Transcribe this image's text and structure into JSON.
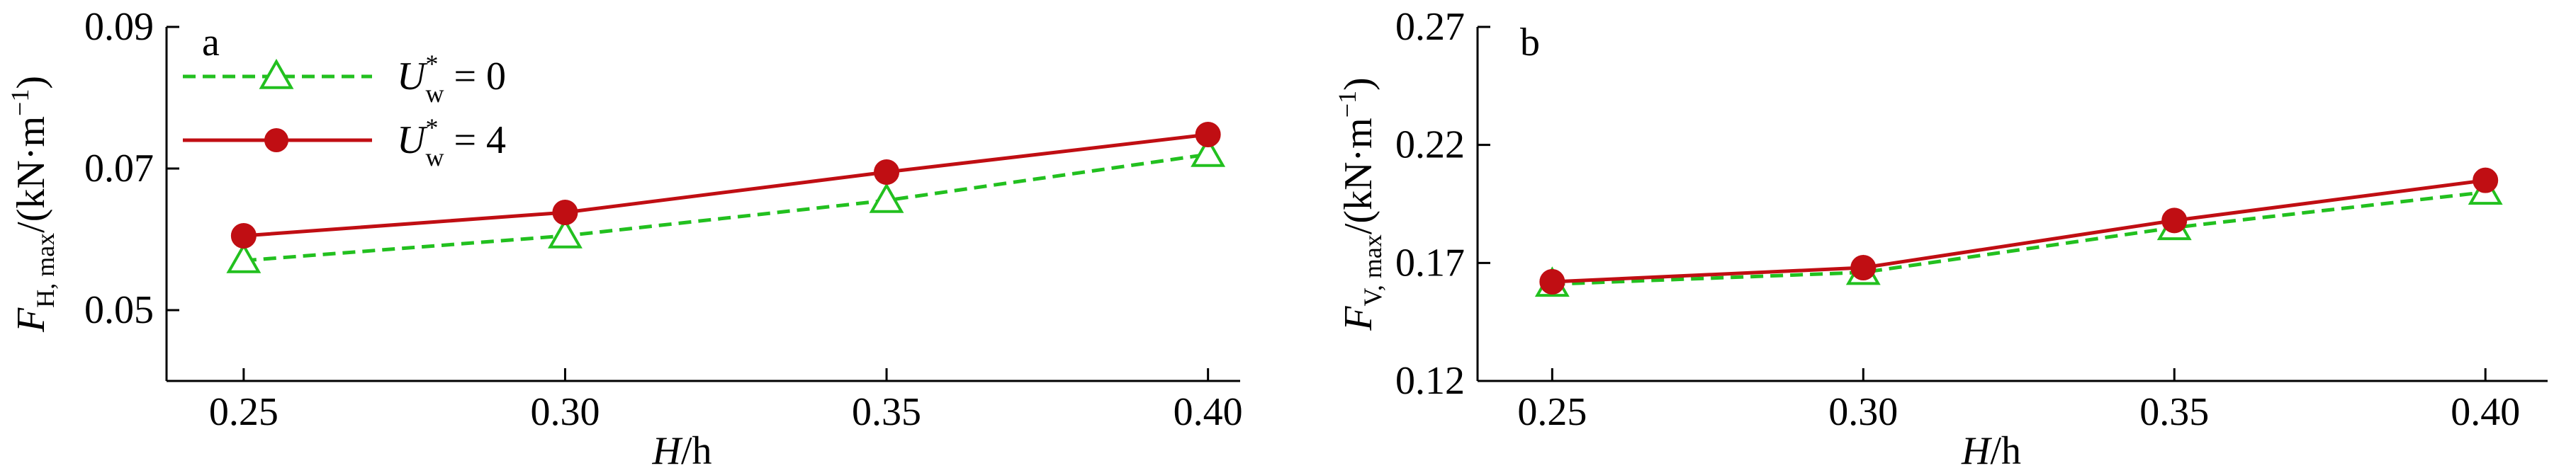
{
  "chart_data": [
    {
      "type": "line",
      "panel_label": "a",
      "x": [
        0.25,
        0.3,
        0.35,
        0.4
      ],
      "xtick_labels": [
        "0.25",
        "0.30",
        "0.35",
        "0.40"
      ],
      "xlim": [
        0.238,
        0.405
      ],
      "ylim": [
        0.04,
        0.09
      ],
      "yticks": [
        0.05,
        0.07,
        0.09
      ],
      "ytick_labels": [
        "0.05",
        "0.07",
        "0.09"
      ],
      "xlabel": {
        "main": "H",
        "rest": "/h"
      },
      "ylabel": {
        "main": "F",
        "sub": "H, max",
        "rest": "/(kN·m",
        "sup": "−1",
        "close": ")"
      },
      "series": [
        {
          "name_main": "U",
          "name_sup": "*",
          "name_sub": "w",
          "name_rest": " = 0",
          "marker": "triangle",
          "dash": true,
          "color": "#22c01f",
          "values": [
            0.057,
            0.0605,
            0.0655,
            0.072
          ]
        },
        {
          "name_main": "U",
          "name_sup": "*",
          "name_sub": "w",
          "name_rest": " = 4",
          "marker": "circle",
          "dash": false,
          "color": "#c00e13",
          "values": [
            0.0605,
            0.0638,
            0.0695,
            0.0748
          ]
        }
      ],
      "legend": "top-left"
    },
    {
      "type": "line",
      "panel_label": "b",
      "x": [
        0.25,
        0.3,
        0.35,
        0.4
      ],
      "xtick_labels": [
        "0.25",
        "0.30",
        "0.35",
        "0.40"
      ],
      "xlim": [
        0.238,
        0.41
      ],
      "ylim": [
        0.12,
        0.27
      ],
      "yticks": [
        0.12,
        0.17,
        0.22,
        0.27
      ],
      "ytick_labels": [
        "0.12",
        "0.17",
        "0.22",
        "0.27"
      ],
      "xlabel": {
        "main": "H",
        "rest": "/h"
      },
      "ylabel": {
        "main": "F",
        "sub": "V, max",
        "rest": "/(kN·m",
        "sup": "−1",
        "close": ")"
      },
      "series": [
        {
          "marker": "triangle",
          "dash": true,
          "color": "#22c01f",
          "values": [
            0.161,
            0.166,
            0.185,
            0.2
          ]
        },
        {
          "marker": "circle",
          "dash": false,
          "color": "#c00e13",
          "values": [
            0.162,
            0.168,
            0.188,
            0.205
          ]
        }
      ],
      "legend": "none"
    }
  ]
}
